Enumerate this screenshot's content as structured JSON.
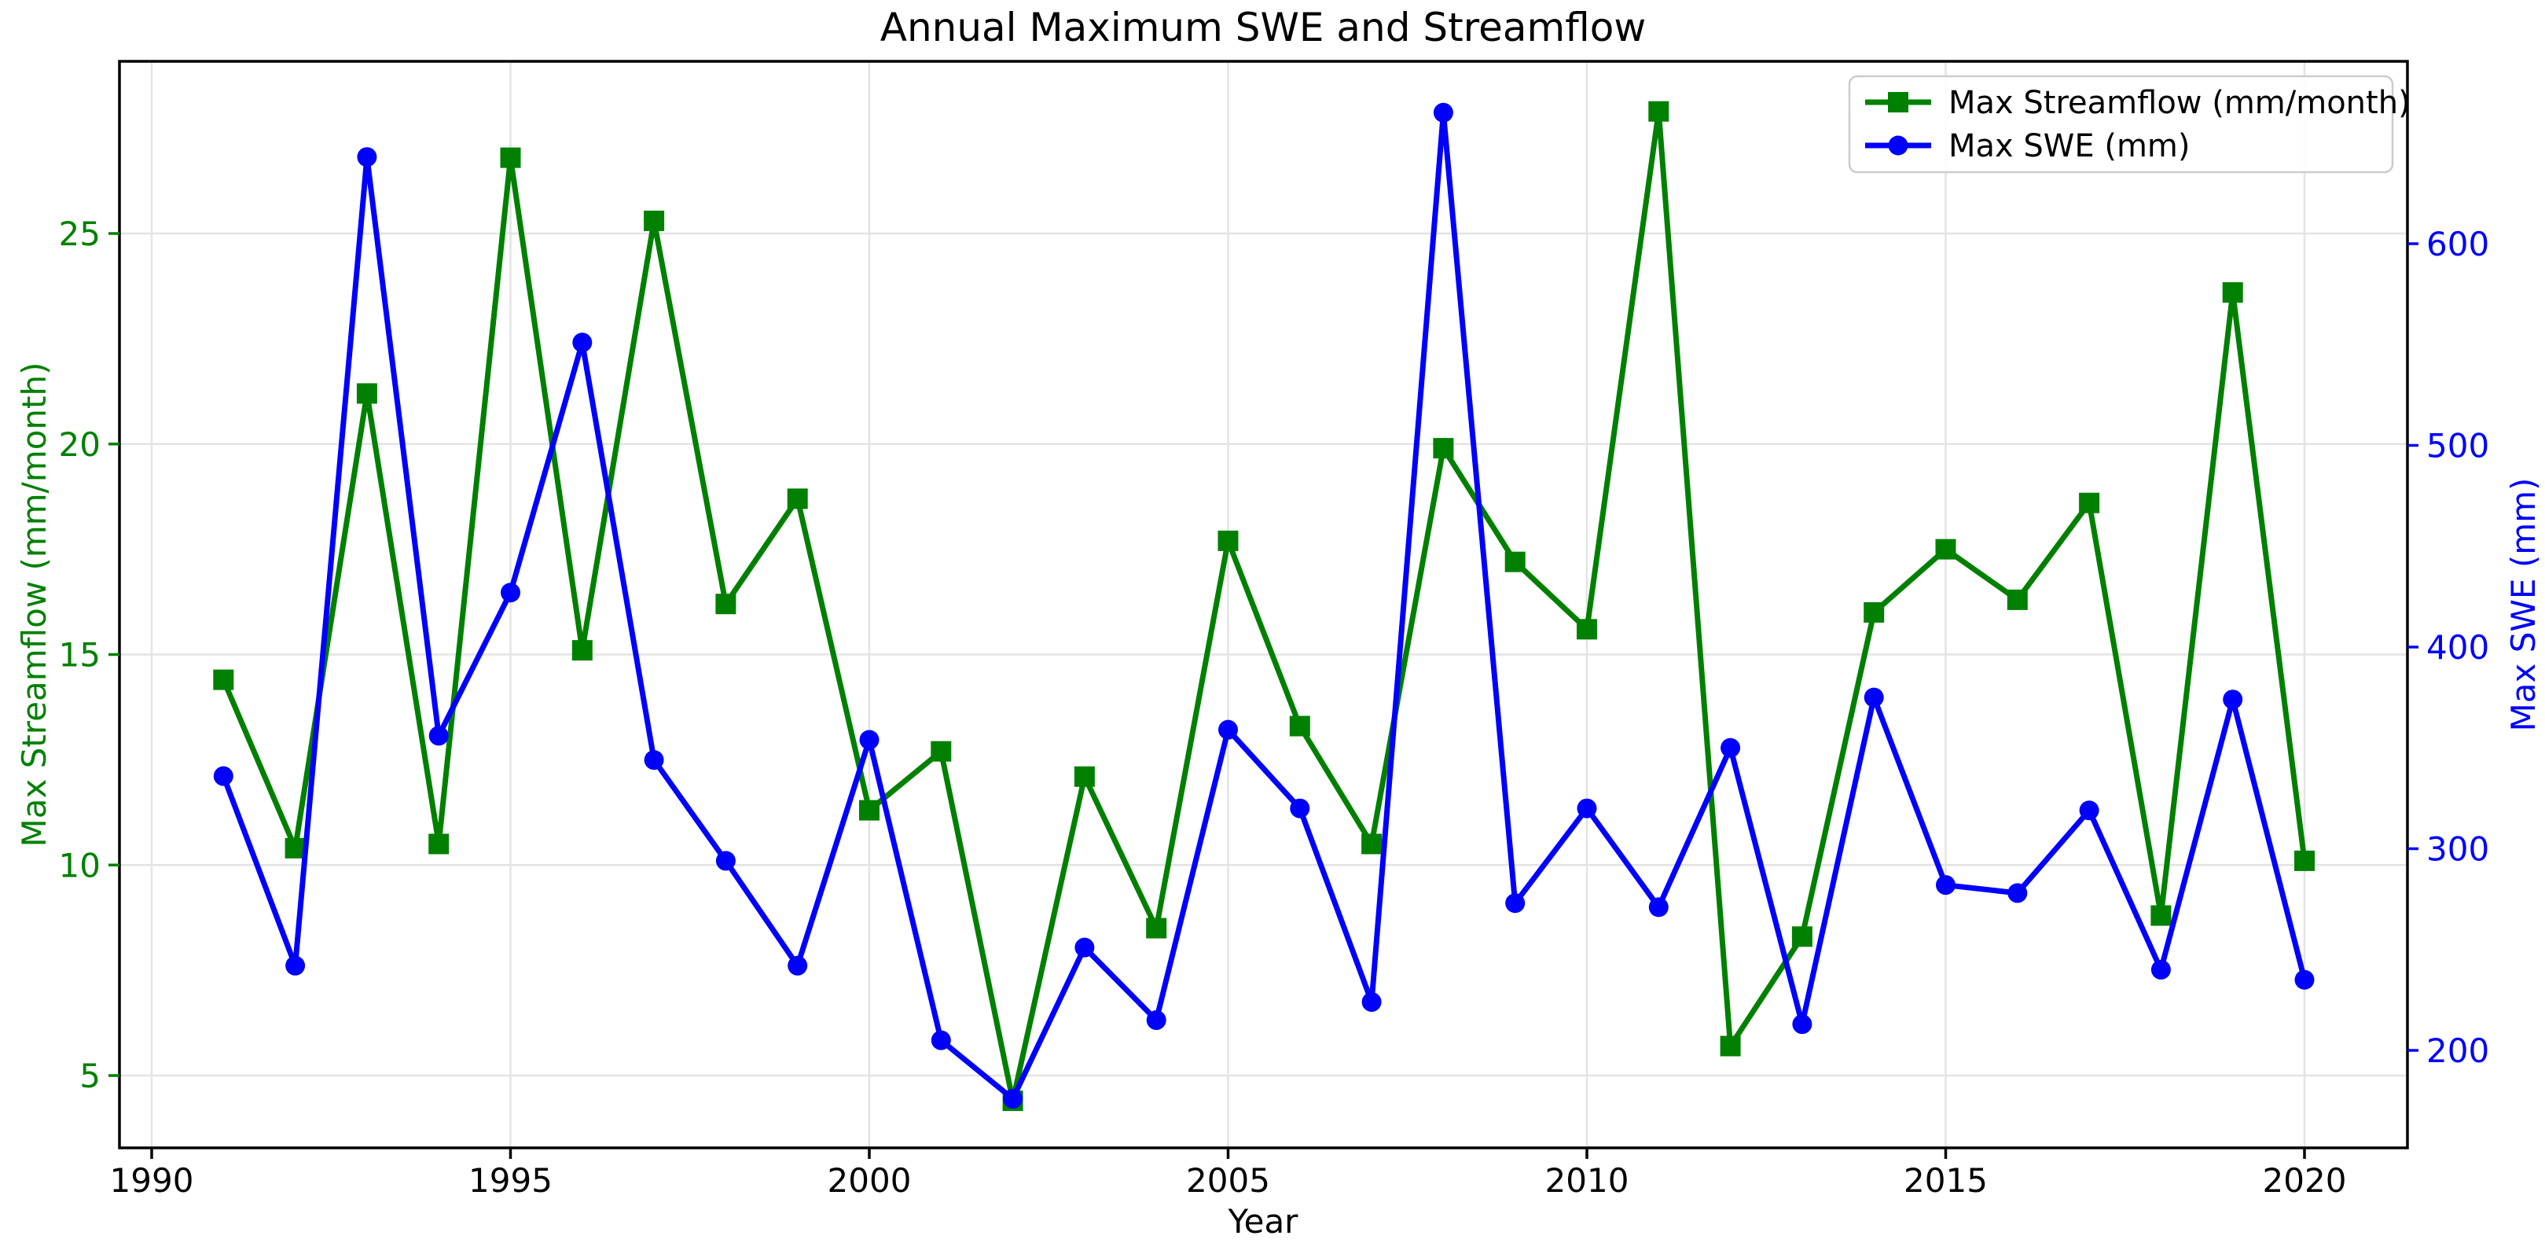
{
  "chart_data": {
    "type": "line",
    "title": "Annual Maximum SWE and Streamflow",
    "xlabel": "Year",
    "left_ylabel": "Max Streamflow (mm/month)",
    "right_ylabel": "Max SWE (mm)",
    "x": [
      1991,
      1992,
      1993,
      1994,
      1995,
      1996,
      1997,
      1998,
      1999,
      2000,
      2001,
      2002,
      2003,
      2004,
      2005,
      2006,
      2007,
      2008,
      2009,
      2010,
      2011,
      2012,
      2013,
      2014,
      2015,
      2016,
      2017,
      2018,
      2019,
      2020
    ],
    "series": [
      {
        "name": "Max Streamflow (mm/month)",
        "axis": "left",
        "color": "#008000",
        "marker": "square",
        "values": [
          14.4,
          10.4,
          21.2,
          10.5,
          26.8,
          15.1,
          25.3,
          16.2,
          18.7,
          11.3,
          12.7,
          4.4,
          12.1,
          8.5,
          17.7,
          13.3,
          10.5,
          19.9,
          17.2,
          15.6,
          27.9,
          5.7,
          8.3,
          16.0,
          17.5,
          16.3,
          18.6,
          8.8,
          23.6,
          10.1
        ]
      },
      {
        "name": "Max SWE (mm)",
        "axis": "right",
        "color": "#0000ff",
        "marker": "circle",
        "values": [
          336,
          242,
          643,
          356,
          427,
          551,
          344,
          294,
          242,
          354,
          205,
          176,
          251,
          215,
          359,
          320,
          224,
          665,
          273,
          320,
          271,
          350,
          213,
          375,
          282,
          278,
          319,
          240,
          374,
          235
        ]
      }
    ],
    "x_ticks": [
      1990,
      1995,
      2000,
      2005,
      2010,
      2015,
      2020
    ],
    "left_ticks": [
      5,
      10,
      15,
      20,
      25
    ],
    "right_ticks": [
      200,
      300,
      400,
      500,
      600
    ],
    "left_ylim": [
      3.3,
      29.1
    ],
    "right_ylim": [
      160,
      690
    ],
    "xlim": [
      1989.5,
      2021.4
    ],
    "grid": true,
    "legend_position": "upper right",
    "legend": [
      {
        "label": "Max Streamflow (mm/month)",
        "marker": "square",
        "color": "#008000"
      },
      {
        "label": "Max SWE (mm)",
        "marker": "circle",
        "color": "#0000ff"
      }
    ],
    "colors": {
      "streamflow": "#008000",
      "swe": "#0000ff",
      "grid": "#e3e3e3",
      "spine": "#000000",
      "legend_border": "#cccccc",
      "background": "#ffffff"
    }
  }
}
